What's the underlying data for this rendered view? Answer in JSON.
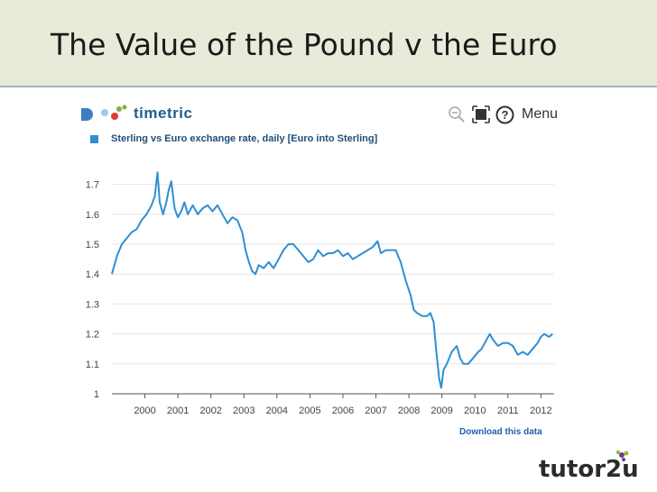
{
  "slide": {
    "title": "The Value of the Pound v the Euro",
    "footer_logo": "tutor2u"
  },
  "widget": {
    "brand_name": "timetric",
    "menu_label": "Menu",
    "legend_label": "Sterling vs Euro exchange rate, daily [Euro into Sterling]",
    "download_link": "Download this data",
    "icons": [
      "zoom-out-icon",
      "fullscreen-icon",
      "help-icon"
    ]
  },
  "colors": {
    "series": "#2f8fd3",
    "header_bg": "#e8ebd9",
    "link": "#1f5fae"
  },
  "chart_data": {
    "type": "line",
    "title": "Sterling vs Euro exchange rate, daily [Euro into Sterling]",
    "xlabel": "",
    "ylabel": "",
    "xlim": [
      1999.0,
      2012.4
    ],
    "ylim": [
      1.0,
      1.75
    ],
    "yticks": [
      1,
      1.1,
      1.2,
      1.3,
      1.4,
      1.5,
      1.6,
      1.7
    ],
    "xticks": [
      "2000",
      "2001",
      "2002",
      "2003",
      "2004",
      "2005",
      "2006",
      "2007",
      "2008",
      "2009",
      "2010",
      "2011",
      "2012"
    ],
    "grid": true,
    "series": [
      {
        "name": "Sterling vs Euro exchange rate",
        "points": [
          [
            1999.0,
            1.4
          ],
          [
            1999.15,
            1.46
          ],
          [
            1999.3,
            1.5
          ],
          [
            1999.45,
            1.52
          ],
          [
            1999.6,
            1.54
          ],
          [
            1999.75,
            1.55
          ],
          [
            1999.9,
            1.58
          ],
          [
            2000.05,
            1.6
          ],
          [
            2000.2,
            1.63
          ],
          [
            2000.3,
            1.66
          ],
          [
            2000.38,
            1.74
          ],
          [
            2000.45,
            1.64
          ],
          [
            2000.55,
            1.6
          ],
          [
            2000.65,
            1.64
          ],
          [
            2000.72,
            1.68
          ],
          [
            2000.8,
            1.71
          ],
          [
            2000.9,
            1.62
          ],
          [
            2001.0,
            1.59
          ],
          [
            2001.1,
            1.61
          ],
          [
            2001.2,
            1.64
          ],
          [
            2001.3,
            1.6
          ],
          [
            2001.45,
            1.63
          ],
          [
            2001.6,
            1.6
          ],
          [
            2001.75,
            1.62
          ],
          [
            2001.9,
            1.63
          ],
          [
            2002.05,
            1.61
          ],
          [
            2002.2,
            1.63
          ],
          [
            2002.35,
            1.6
          ],
          [
            2002.5,
            1.57
          ],
          [
            2002.65,
            1.59
          ],
          [
            2002.8,
            1.58
          ],
          [
            2002.95,
            1.54
          ],
          [
            2003.05,
            1.48
          ],
          [
            2003.15,
            1.44
          ],
          [
            2003.25,
            1.41
          ],
          [
            2003.35,
            1.4
          ],
          [
            2003.45,
            1.43
          ],
          [
            2003.6,
            1.42
          ],
          [
            2003.75,
            1.44
          ],
          [
            2003.9,
            1.42
          ],
          [
            2004.05,
            1.45
          ],
          [
            2004.2,
            1.48
          ],
          [
            2004.35,
            1.5
          ],
          [
            2004.5,
            1.5
          ],
          [
            2004.65,
            1.48
          ],
          [
            2004.8,
            1.46
          ],
          [
            2004.95,
            1.44
          ],
          [
            2005.1,
            1.45
          ],
          [
            2005.25,
            1.48
          ],
          [
            2005.4,
            1.46
          ],
          [
            2005.55,
            1.47
          ],
          [
            2005.7,
            1.47
          ],
          [
            2005.85,
            1.48
          ],
          [
            2006.0,
            1.46
          ],
          [
            2006.15,
            1.47
          ],
          [
            2006.3,
            1.45
          ],
          [
            2006.45,
            1.46
          ],
          [
            2006.6,
            1.47
          ],
          [
            2006.75,
            1.48
          ],
          [
            2006.9,
            1.49
          ],
          [
            2007.05,
            1.51
          ],
          [
            2007.15,
            1.47
          ],
          [
            2007.3,
            1.48
          ],
          [
            2007.45,
            1.48
          ],
          [
            2007.6,
            1.48
          ],
          [
            2007.75,
            1.44
          ],
          [
            2007.9,
            1.38
          ],
          [
            2008.05,
            1.33
          ],
          [
            2008.15,
            1.28
          ],
          [
            2008.25,
            1.27
          ],
          [
            2008.4,
            1.26
          ],
          [
            2008.55,
            1.26
          ],
          [
            2008.65,
            1.27
          ],
          [
            2008.75,
            1.24
          ],
          [
            2008.83,
            1.14
          ],
          [
            2008.92,
            1.05
          ],
          [
            2008.98,
            1.02
          ],
          [
            2009.05,
            1.08
          ],
          [
            2009.15,
            1.1
          ],
          [
            2009.3,
            1.14
          ],
          [
            2009.45,
            1.16
          ],
          [
            2009.55,
            1.12
          ],
          [
            2009.65,
            1.1
          ],
          [
            2009.8,
            1.1
          ],
          [
            2009.95,
            1.12
          ],
          [
            2010.1,
            1.14
          ],
          [
            2010.2,
            1.15
          ],
          [
            2010.35,
            1.18
          ],
          [
            2010.45,
            1.2
          ],
          [
            2010.55,
            1.18
          ],
          [
            2010.7,
            1.16
          ],
          [
            2010.85,
            1.17
          ],
          [
            2011.0,
            1.17
          ],
          [
            2011.15,
            1.16
          ],
          [
            2011.3,
            1.13
          ],
          [
            2011.45,
            1.14
          ],
          [
            2011.6,
            1.13
          ],
          [
            2011.75,
            1.15
          ],
          [
            2011.9,
            1.17
          ],
          [
            2012.0,
            1.19
          ],
          [
            2012.1,
            1.2
          ],
          [
            2012.25,
            1.19
          ],
          [
            2012.35,
            1.2
          ]
        ]
      }
    ]
  }
}
